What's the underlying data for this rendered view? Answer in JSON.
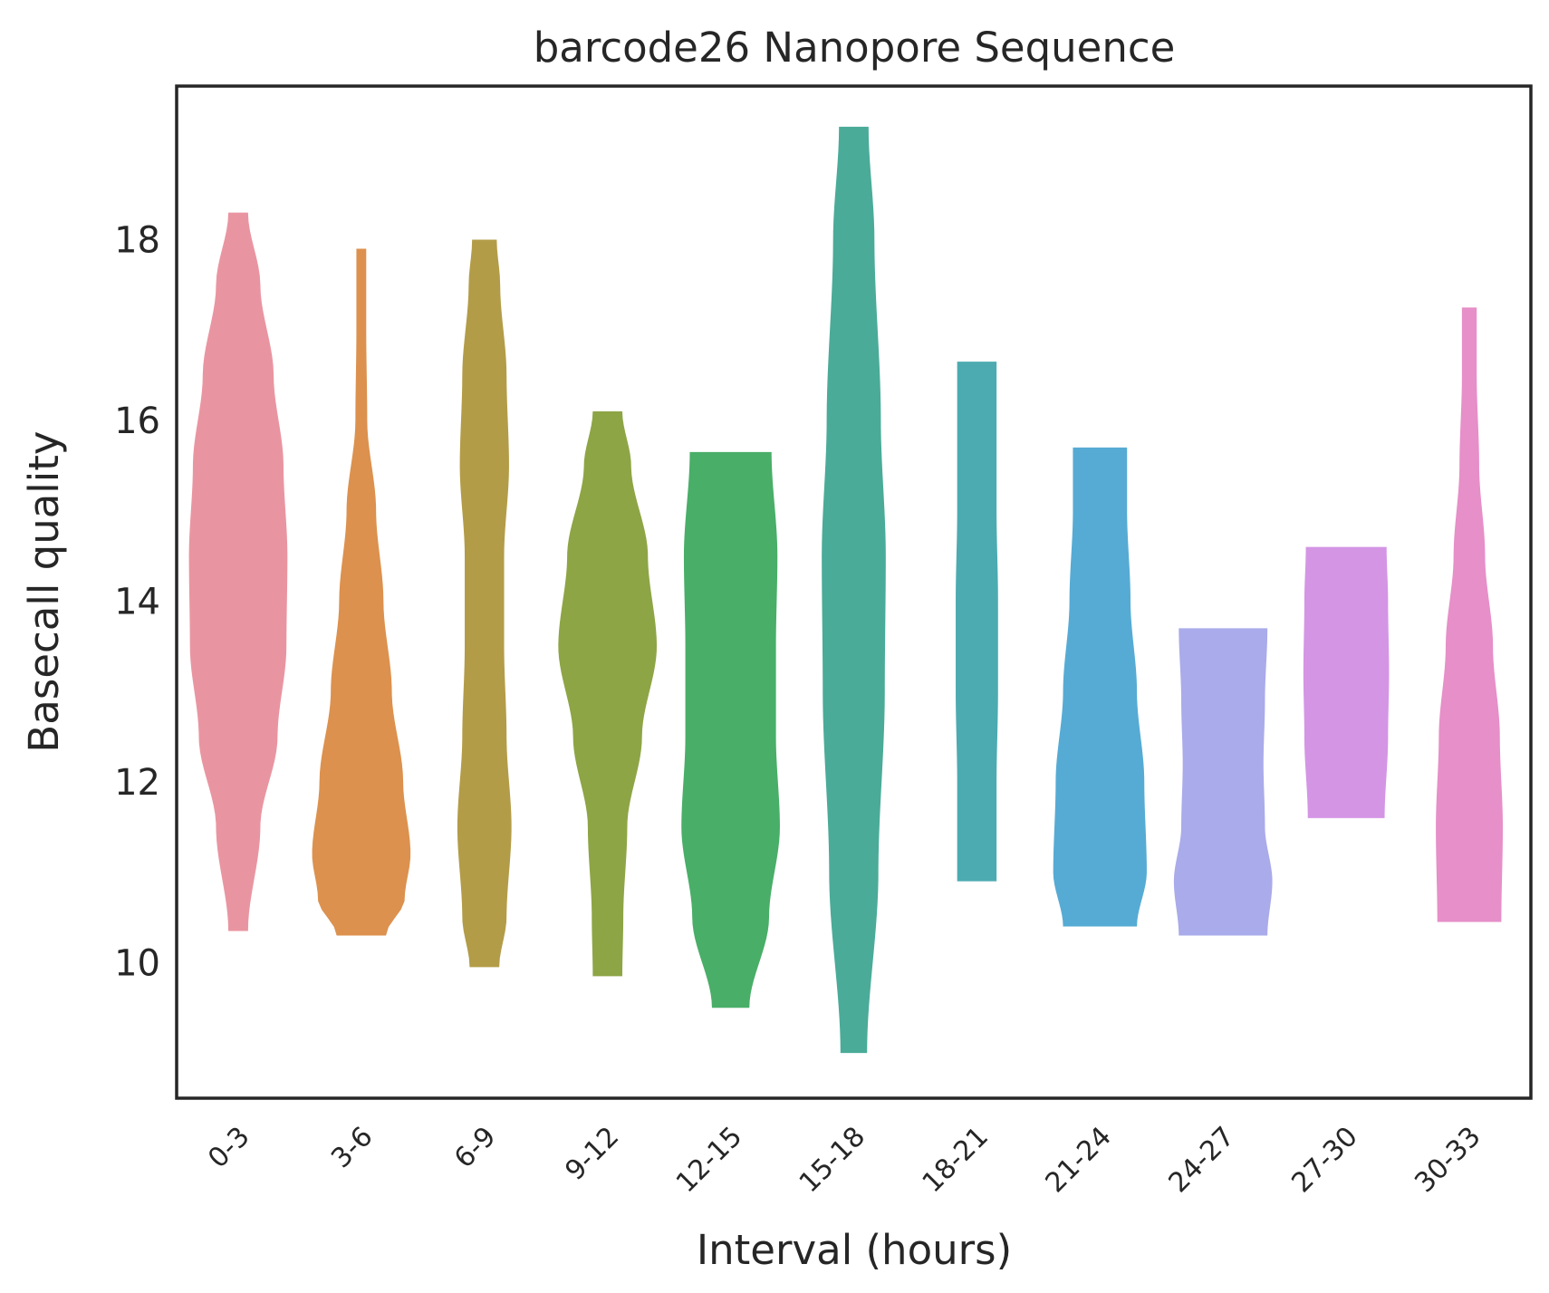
{
  "chart_data": {
    "type": "violin",
    "title": "barcode26 Nanopore Sequence",
    "xlabel": "Interval (hours)",
    "ylabel": "Basecall quality",
    "ylim": [
      8.5,
      19.7
    ],
    "yticks": [
      10,
      12,
      14,
      16,
      18
    ],
    "grid": false,
    "categories": [
      "0-3",
      "3-6",
      "6-9",
      "9-12",
      "12-15",
      "15-18",
      "18-21",
      "21-24",
      "24-27",
      "27-30",
      "30-33"
    ],
    "colors": [
      "#e995a1",
      "#dc914e",
      "#b39c48",
      "#8da545",
      "#49ae68",
      "#4aab98",
      "#4cabb0",
      "#56abd4",
      "#a9abea",
      "#d495e5",
      "#e68fc8"
    ],
    "violins": [
      {
        "category": "0-3",
        "min": 10.35,
        "max": 18.3,
        "profile": [
          [
            10.35,
            0.2
          ],
          [
            11.5,
            0.45
          ],
          [
            12.5,
            0.8
          ],
          [
            13.5,
            0.98
          ],
          [
            14.5,
            1.0
          ],
          [
            15.5,
            0.92
          ],
          [
            16.5,
            0.72
          ],
          [
            17.5,
            0.45
          ],
          [
            18.3,
            0.2
          ]
        ]
      },
      {
        "category": "3-6",
        "min": 10.3,
        "max": 17.9,
        "profile": [
          [
            10.3,
            0.5
          ],
          [
            10.7,
            0.88
          ],
          [
            11.2,
            1.0
          ],
          [
            12.0,
            0.85
          ],
          [
            13.0,
            0.62
          ],
          [
            14.0,
            0.45
          ],
          [
            15.0,
            0.3
          ],
          [
            16.0,
            0.12
          ],
          [
            17.0,
            0.1
          ],
          [
            17.9,
            0.1
          ]
        ]
      },
      {
        "category": "6-9",
        "min": 9.95,
        "max": 18.0,
        "profile": [
          [
            9.95,
            0.3
          ],
          [
            10.5,
            0.45
          ],
          [
            11.5,
            0.55
          ],
          [
            12.5,
            0.45
          ],
          [
            13.5,
            0.4
          ],
          [
            14.5,
            0.4
          ],
          [
            15.5,
            0.5
          ],
          [
            16.5,
            0.45
          ],
          [
            17.5,
            0.32
          ],
          [
            18.0,
            0.25
          ]
        ]
      },
      {
        "category": "9-12",
        "min": 9.85,
        "max": 16.1,
        "profile": [
          [
            9.85,
            0.3
          ],
          [
            10.5,
            0.32
          ],
          [
            11.5,
            0.4
          ],
          [
            12.5,
            0.7
          ],
          [
            13.5,
            1.0
          ],
          [
            14.5,
            0.82
          ],
          [
            15.5,
            0.48
          ],
          [
            16.1,
            0.3
          ]
        ]
      },
      {
        "category": "12-15",
        "min": 9.5,
        "max": 15.65,
        "profile": [
          [
            9.5,
            0.38
          ],
          [
            10.5,
            0.78
          ],
          [
            11.5,
            1.0
          ],
          [
            12.5,
            0.92
          ],
          [
            13.5,
            0.92
          ],
          [
            14.5,
            0.95
          ],
          [
            15.65,
            0.83
          ]
        ]
      },
      {
        "category": "15-18",
        "min": 9.0,
        "max": 19.25,
        "profile": [
          [
            9.0,
            0.27
          ],
          [
            11.0,
            0.5
          ],
          [
            13.0,
            0.63
          ],
          [
            14.5,
            0.65
          ],
          [
            16.0,
            0.55
          ],
          [
            18.0,
            0.42
          ],
          [
            19.25,
            0.3
          ]
        ]
      },
      {
        "category": "18-21",
        "min": 10.9,
        "max": 16.65,
        "profile": [
          [
            10.9,
            0.4
          ],
          [
            12.0,
            0.4
          ],
          [
            13.0,
            0.43
          ],
          [
            14.0,
            0.43
          ],
          [
            15.0,
            0.4
          ],
          [
            16.65,
            0.4
          ]
        ]
      },
      {
        "category": "21-24",
        "min": 10.4,
        "max": 15.7,
        "profile": [
          [
            10.4,
            0.75
          ],
          [
            11.0,
            0.95
          ],
          [
            12.0,
            0.9
          ],
          [
            13.0,
            0.75
          ],
          [
            14.0,
            0.62
          ],
          [
            15.0,
            0.55
          ],
          [
            15.7,
            0.55
          ]
        ]
      },
      {
        "category": "24-27",
        "min": 10.3,
        "max": 13.7,
        "profile": [
          [
            10.3,
            0.9
          ],
          [
            10.9,
            1.0
          ],
          [
            11.5,
            0.85
          ],
          [
            12.2,
            0.82
          ],
          [
            12.9,
            0.85
          ],
          [
            13.7,
            0.9
          ]
        ]
      },
      {
        "category": "27-30",
        "min": 11.6,
        "max": 14.6,
        "profile": [
          [
            11.6,
            0.78
          ],
          [
            12.5,
            0.85
          ],
          [
            13.2,
            0.87
          ],
          [
            14.0,
            0.85
          ],
          [
            14.6,
            0.82
          ]
        ]
      },
      {
        "category": "30-33",
        "min": 10.45,
        "max": 17.25,
        "profile": [
          [
            10.45,
            0.65
          ],
          [
            11.5,
            0.68
          ],
          [
            12.5,
            0.62
          ],
          [
            13.5,
            0.48
          ],
          [
            14.5,
            0.32
          ],
          [
            15.5,
            0.2
          ],
          [
            16.5,
            0.15
          ],
          [
            17.25,
            0.15
          ]
        ]
      }
    ]
  }
}
